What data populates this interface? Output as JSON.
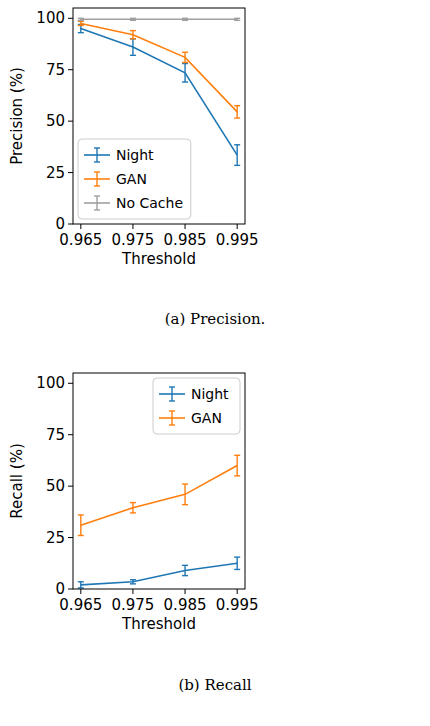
{
  "chart_data": [
    {
      "type": "line",
      "caption": "(a) Precision.",
      "x_label": "Threshold",
      "y_label": "Precision (%)",
      "x": [
        0.965,
        0.975,
        0.985,
        0.995
      ],
      "xlim": [
        0.9635,
        0.9965
      ],
      "xticks": [
        0.965,
        0.975,
        0.985,
        0.995
      ],
      "ylim": [
        0,
        105
      ],
      "yticks": [
        0,
        25,
        50,
        75,
        100
      ],
      "grid": false,
      "legend": "lower left",
      "marker": "none",
      "line_style": "solid",
      "series": [
        {
          "name": "Night",
          "color": "#1f77b4",
          "values": [
            95,
            86,
            73.5,
            33.5
          ],
          "errors": [
            2,
            4,
            4.5,
            5
          ]
        },
        {
          "name": "GAN",
          "color": "#ff7f0e",
          "values": [
            97.5,
            92,
            81,
            54.5
          ],
          "errors": [
            1,
            2,
            2.5,
            3
          ]
        },
        {
          "name": "No Cache",
          "color": "#a0a0a0",
          "values": [
            99.5,
            99.5,
            99.5,
            99.5
          ],
          "errors": [
            0.5,
            0.5,
            0.5,
            0.5
          ]
        }
      ]
    },
    {
      "type": "line",
      "caption": "(b) Recall",
      "x_label": "Threshold",
      "y_label": "Recall (%)",
      "x": [
        0.965,
        0.975,
        0.985,
        0.995
      ],
      "xlim": [
        0.9635,
        0.9965
      ],
      "xticks": [
        0.965,
        0.975,
        0.985,
        0.995
      ],
      "ylim": [
        0,
        105
      ],
      "yticks": [
        0,
        25,
        50,
        75,
        100
      ],
      "grid": false,
      "legend": "upper right",
      "marker": "none",
      "line_style": "solid",
      "series": [
        {
          "name": "Night",
          "color": "#1f77b4",
          "values": [
            2,
            3.5,
            9,
            12.5
          ],
          "errors": [
            1.5,
            1,
            2.5,
            3
          ]
        },
        {
          "name": "GAN",
          "color": "#ff7f0e",
          "values": [
            31,
            39.5,
            46,
            60
          ],
          "errors": [
            5,
            2.5,
            5,
            5
          ]
        }
      ]
    }
  ]
}
